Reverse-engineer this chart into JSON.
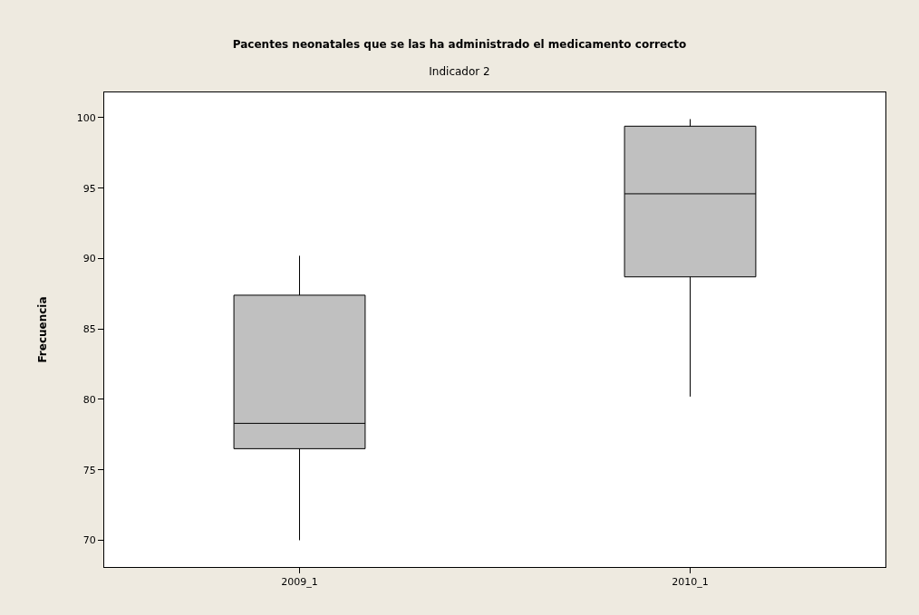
{
  "chart_data": {
    "type": "box",
    "title": "Pacentes neonatales que se las ha administrado el medicamento correcto",
    "subtitle": "Indicador 2",
    "ylabel": "Frecuencia",
    "categories": [
      "2009_1",
      "2010_1"
    ],
    "color": "#c0c0c0",
    "boxes": [
      {
        "low": 70,
        "q1": 76.5,
        "median": 78.3,
        "q3": 87.4,
        "high": 90.2
      },
      {
        "low": 80.2,
        "q1": 88.7,
        "median": 94.6,
        "q3": 99.4,
        "high": 99.9
      }
    ],
    "ylim": [
      68.1,
      101.8
    ],
    "yticks": [
      70,
      75,
      80,
      85,
      90,
      95,
      100
    ],
    "grid": false,
    "legend": false
  }
}
